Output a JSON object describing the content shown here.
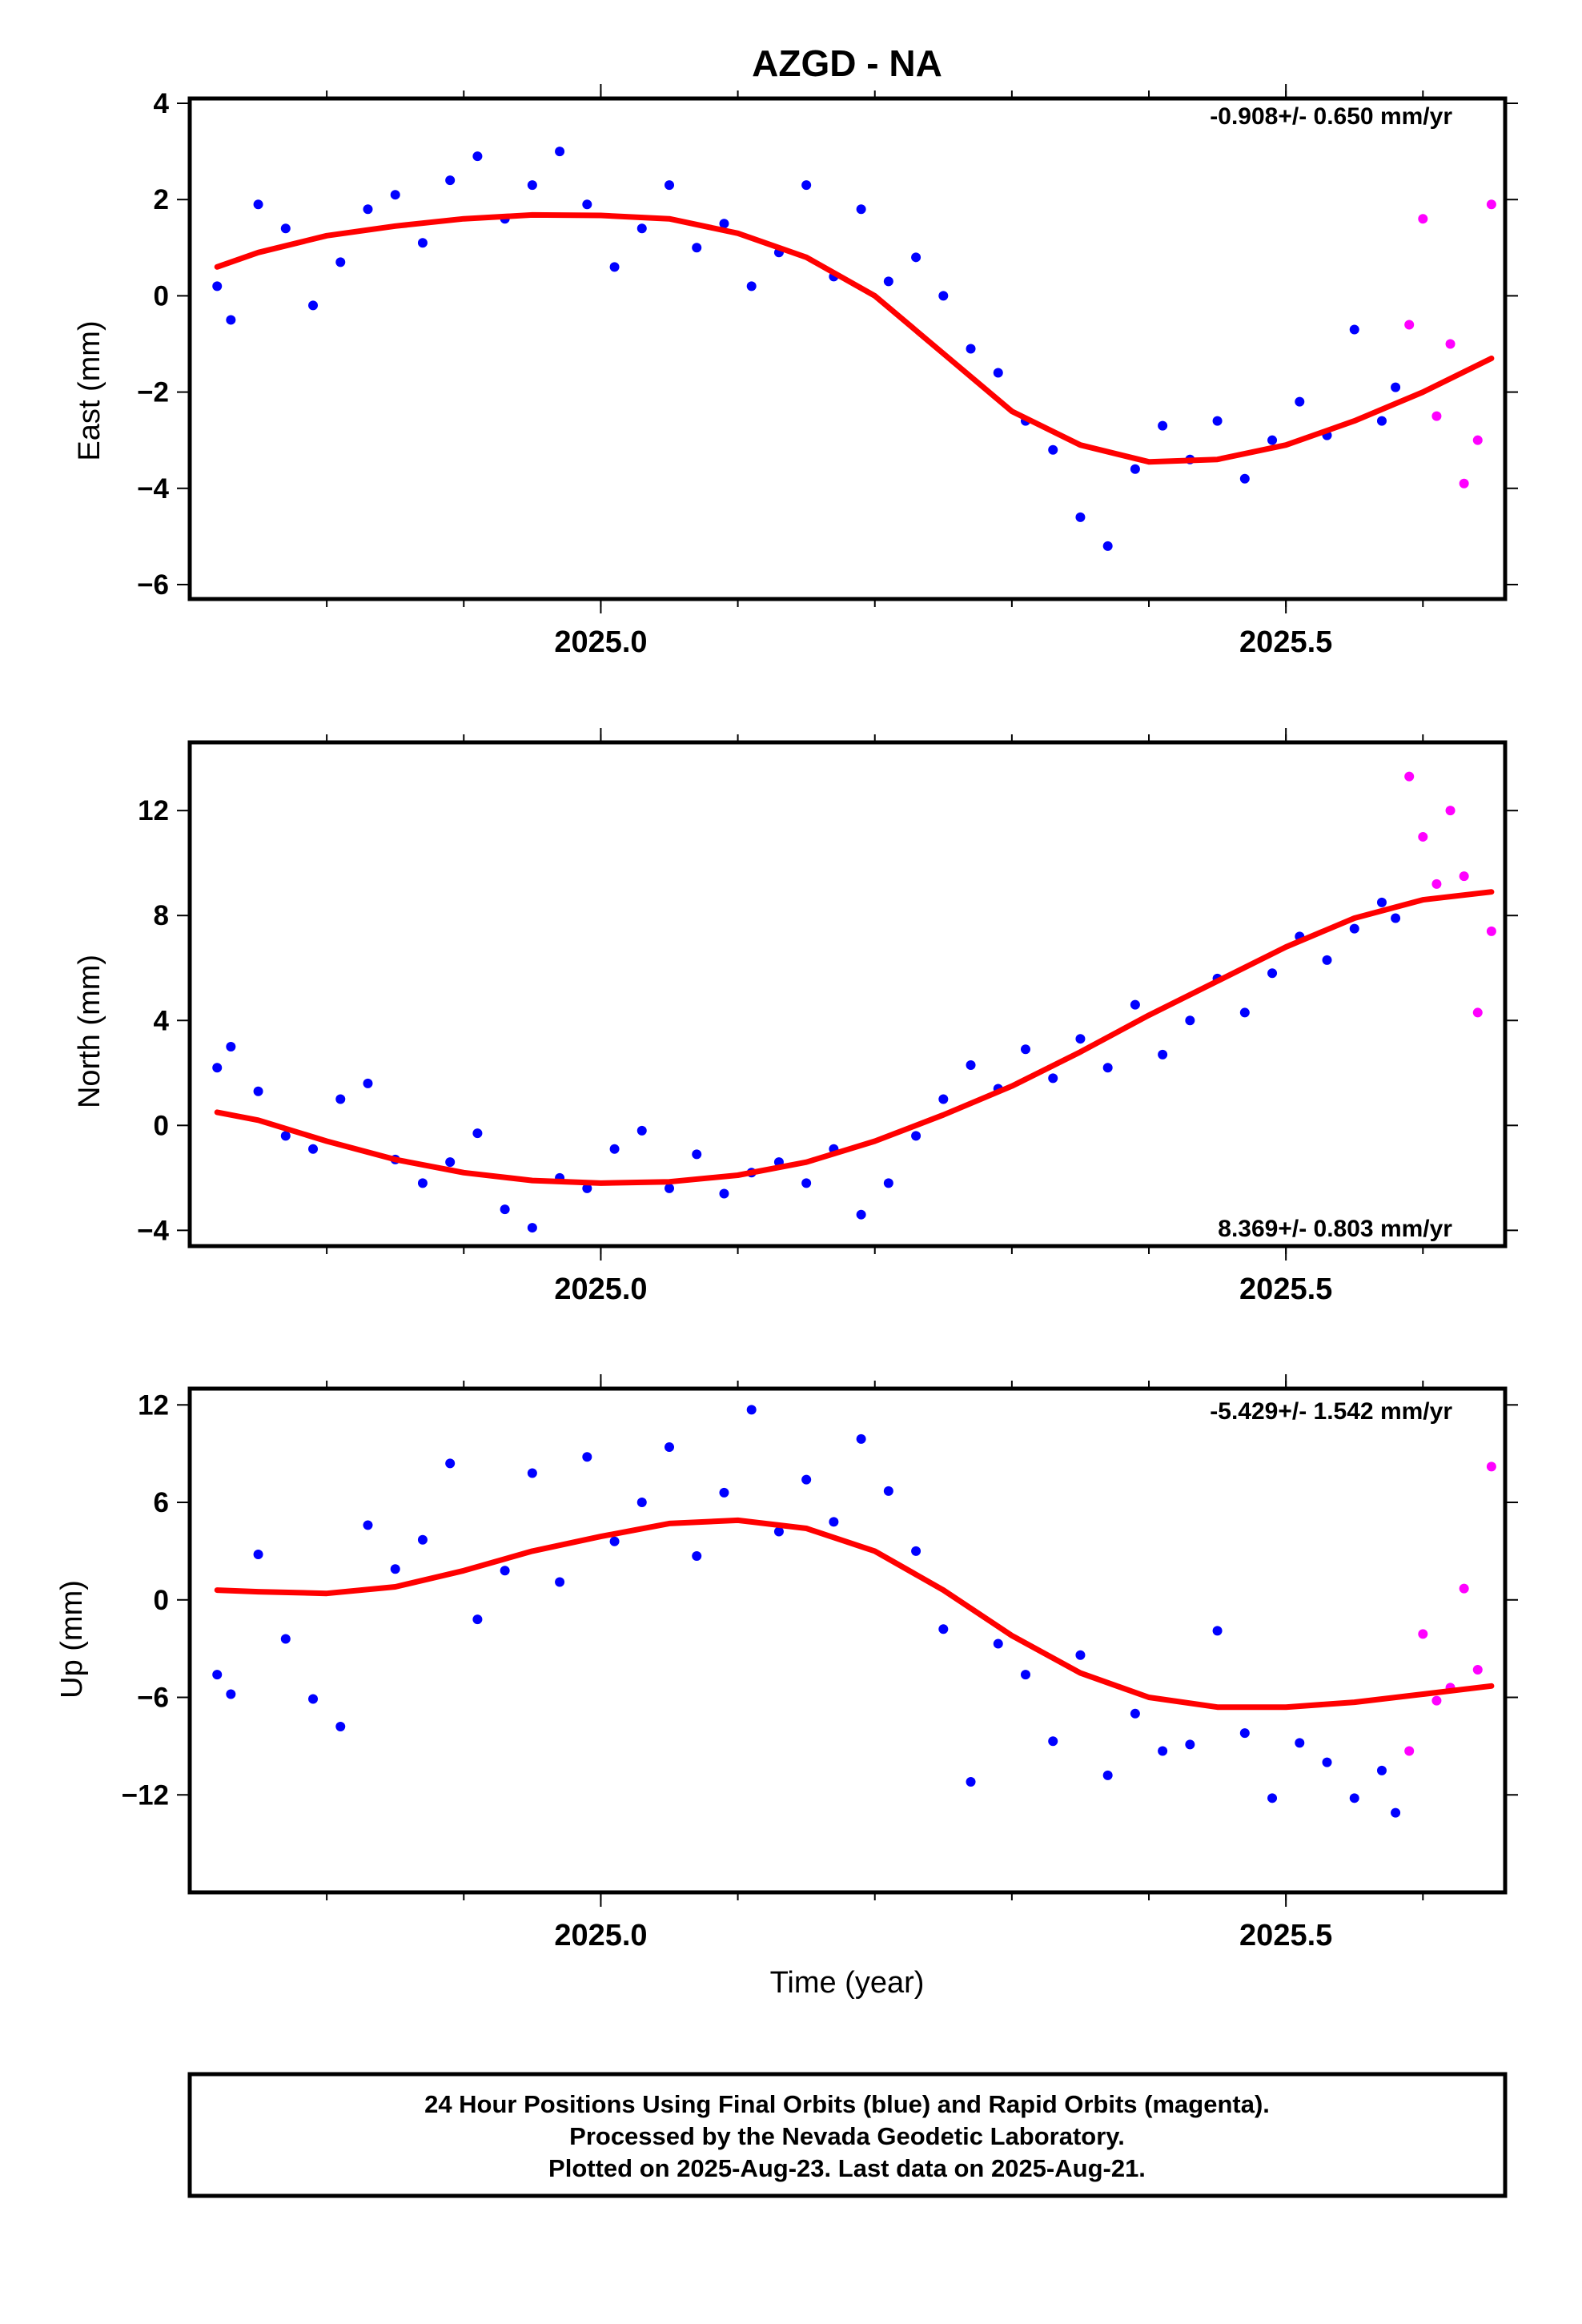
{
  "title": "AZGD - NA",
  "colors": {
    "final": "#0000ff",
    "rapid": "#ff00ff",
    "fit": "#ff0000",
    "frame": "#000000"
  },
  "xlabel": "Time (year)",
  "footer": {
    "line1": "24 Hour Positions Using Final Orbits (blue) and Rapid Orbits (magenta).",
    "line2": "Processed by the Nevada Geodetic Laboratory.",
    "line3": "Plotted on 2025-Aug-23. Last data on 2025-Aug-21."
  },
  "chart_data": [
    {
      "type": "scatter",
      "ylabel": "East (mm)",
      "rate_text": "-0.908+/- 0.650 mm/yr",
      "xlim": [
        2024.7,
        2025.66
      ],
      "ylim": [
        -6.3,
        4.1
      ],
      "yticks": [
        -6,
        -4,
        -2,
        0,
        2,
        4
      ],
      "xticks": [
        2025.0,
        2025.5
      ],
      "xtick_labels": [
        "2025.0",
        "2025.5"
      ],
      "grid": false,
      "fit": {
        "x": [
          2024.72,
          2024.75,
          2024.8,
          2024.85,
          2024.9,
          2024.95,
          2025.0,
          2025.05,
          2025.1,
          2025.15,
          2025.2,
          2025.25,
          2025.3,
          2025.35,
          2025.4,
          2025.45,
          2025.5,
          2025.55,
          2025.6,
          2025.65
        ],
        "y": [
          0.6,
          0.9,
          1.25,
          1.45,
          1.6,
          1.68,
          1.67,
          1.6,
          1.3,
          0.8,
          0.0,
          -1.2,
          -2.4,
          -3.1,
          -3.45,
          -3.4,
          -3.1,
          -2.6,
          -2.0,
          -1.3
        ]
      },
      "final": {
        "x": [
          2024.72,
          2024.73,
          2024.75,
          2024.77,
          2024.79,
          2024.81,
          2024.83,
          2024.85,
          2024.87,
          2024.89,
          2024.91,
          2024.93,
          2024.95,
          2024.97,
          2024.99,
          2025.01,
          2025.03,
          2025.05,
          2025.07,
          2025.09,
          2025.11,
          2025.13,
          2025.15,
          2025.17,
          2025.19,
          2025.21,
          2025.23,
          2025.25,
          2025.27,
          2025.29,
          2025.31,
          2025.33,
          2025.35,
          2025.37,
          2025.39,
          2025.41,
          2025.43,
          2025.45,
          2025.47,
          2025.49,
          2025.51,
          2025.53,
          2025.55,
          2025.57,
          2025.58
        ],
        "y": [
          0.2,
          -0.5,
          1.9,
          1.4,
          -0.2,
          0.7,
          1.8,
          2.1,
          1.1,
          2.4,
          2.9,
          1.6,
          2.3,
          3.0,
          1.9,
          0.6,
          1.4,
          2.3,
          1.0,
          1.5,
          0.2,
          0.9,
          2.3,
          0.4,
          1.8,
          0.3,
          0.8,
          0.0,
          -1.1,
          -1.6,
          -2.6,
          -3.2,
          -4.6,
          -5.2,
          -3.6,
          -2.7,
          -3.4,
          -2.6,
          -3.8,
          -3.0,
          -2.2,
          -2.9,
          -0.7,
          -2.6,
          -1.9
        ]
      },
      "rapid": {
        "x": [
          2025.59,
          2025.6,
          2025.61,
          2025.62,
          2025.63,
          2025.64,
          2025.65
        ],
        "y": [
          -0.6,
          1.6,
          -2.5,
          -1.0,
          -3.9,
          -3.0,
          1.9
        ]
      }
    },
    {
      "type": "scatter",
      "ylabel": "North (mm)",
      "rate_text": "8.369+/- 0.803 mm/yr",
      "xlim": [
        2024.7,
        2025.66
      ],
      "ylim": [
        -4.6,
        14.6
      ],
      "yticks": [
        -4,
        0,
        4,
        8,
        12
      ],
      "xticks": [
        2025.0,
        2025.5
      ],
      "xtick_labels": [
        "2025.0",
        "2025.5"
      ],
      "grid": false,
      "fit": {
        "x": [
          2024.72,
          2024.75,
          2024.8,
          2024.85,
          2024.9,
          2024.95,
          2025.0,
          2025.05,
          2025.1,
          2025.15,
          2025.2,
          2025.25,
          2025.3,
          2025.35,
          2025.4,
          2025.45,
          2025.5,
          2025.55,
          2025.6,
          2025.65
        ],
        "y": [
          0.5,
          0.2,
          -0.6,
          -1.3,
          -1.8,
          -2.1,
          -2.2,
          -2.15,
          -1.9,
          -1.4,
          -0.6,
          0.4,
          1.5,
          2.8,
          4.2,
          5.5,
          6.8,
          7.9,
          8.6,
          8.9
        ]
      },
      "final": {
        "x": [
          2024.72,
          2024.73,
          2024.75,
          2024.77,
          2024.79,
          2024.81,
          2024.83,
          2024.85,
          2024.87,
          2024.89,
          2024.91,
          2024.93,
          2024.95,
          2024.97,
          2024.99,
          2025.01,
          2025.03,
          2025.05,
          2025.07,
          2025.09,
          2025.11,
          2025.13,
          2025.15,
          2025.17,
          2025.19,
          2025.21,
          2025.23,
          2025.25,
          2025.27,
          2025.29,
          2025.31,
          2025.33,
          2025.35,
          2025.37,
          2025.39,
          2025.41,
          2025.43,
          2025.45,
          2025.47,
          2025.49,
          2025.51,
          2025.53,
          2025.55,
          2025.57,
          2025.58
        ],
        "y": [
          2.2,
          3.0,
          1.3,
          -0.4,
          -0.9,
          1.0,
          1.6,
          -1.3,
          -2.2,
          -1.4,
          -0.3,
          -3.2,
          -3.9,
          -2.0,
          -2.4,
          -0.9,
          -0.2,
          -2.4,
          -1.1,
          -2.6,
          -1.8,
          -1.4,
          -2.2,
          -0.9,
          -3.4,
          -2.2,
          -0.4,
          1.0,
          2.3,
          1.4,
          2.9,
          1.8,
          3.3,
          2.2,
          4.6,
          2.7,
          4.0,
          5.6,
          4.3,
          5.8,
          7.2,
          6.3,
          7.5,
          8.5,
          7.9
        ]
      },
      "rapid": {
        "x": [
          2025.59,
          2025.6,
          2025.61,
          2025.62,
          2025.63,
          2025.64,
          2025.65
        ],
        "y": [
          13.3,
          11.0,
          9.2,
          12.0,
          9.5,
          4.3,
          7.4
        ]
      }
    },
    {
      "type": "scatter",
      "ylabel": "Up (mm)",
      "rate_text": "-5.429+/- 1.542 mm/yr",
      "xlim": [
        2024.7,
        2025.66
      ],
      "ylim": [
        -18,
        13
      ],
      "yticks": [
        -12,
        -6,
        0,
        6,
        12
      ],
      "xticks": [
        2025.0,
        2025.5
      ],
      "xtick_labels": [
        "2025.0",
        "2025.5"
      ],
      "grid": false,
      "fit": {
        "x": [
          2024.72,
          2024.75,
          2024.8,
          2024.85,
          2024.9,
          2024.95,
          2025.0,
          2025.05,
          2025.1,
          2025.15,
          2025.2,
          2025.25,
          2025.3,
          2025.35,
          2025.4,
          2025.45,
          2025.5,
          2025.55,
          2025.6,
          2025.65
        ],
        "y": [
          0.6,
          0.5,
          0.4,
          0.8,
          1.8,
          3.0,
          3.9,
          4.7,
          4.9,
          4.4,
          3.0,
          0.6,
          -2.2,
          -4.5,
          -6.0,
          -6.6,
          -6.6,
          -6.3,
          -5.8,
          -5.3
        ]
      },
      "final": {
        "x": [
          2024.72,
          2024.73,
          2024.75,
          2024.77,
          2024.79,
          2024.81,
          2024.83,
          2024.85,
          2024.87,
          2024.89,
          2024.91,
          2024.93,
          2024.95,
          2024.97,
          2024.99,
          2025.01,
          2025.03,
          2025.05,
          2025.07,
          2025.09,
          2025.11,
          2025.13,
          2025.15,
          2025.17,
          2025.19,
          2025.21,
          2025.23,
          2025.25,
          2025.27,
          2025.29,
          2025.31,
          2025.33,
          2025.35,
          2025.37,
          2025.39,
          2025.41,
          2025.43,
          2025.45,
          2025.47,
          2025.49,
          2025.51,
          2025.53,
          2025.55,
          2025.57,
          2025.58
        ],
        "y": [
          -4.6,
          -5.8,
          2.8,
          -2.4,
          -6.1,
          -7.8,
          4.6,
          1.9,
          3.7,
          8.4,
          -1.2,
          1.8,
          7.8,
          1.1,
          8.8,
          3.6,
          6.0,
          9.4,
          2.7,
          6.6,
          11.7,
          4.2,
          7.4,
          4.8,
          9.9,
          6.7,
          3.0,
          -1.8,
          -11.2,
          -2.7,
          -4.6,
          -8.7,
          -3.4,
          -10.8,
          -7.0,
          -9.3,
          -8.9,
          -1.9,
          -8.2,
          -12.2,
          -8.8,
          -10.0,
          -12.2,
          -10.5,
          -13.1
        ]
      },
      "rapid": {
        "x": [
          2025.59,
          2025.6,
          2025.61,
          2025.62,
          2025.63,
          2025.64,
          2025.65
        ],
        "y": [
          -9.3,
          -2.1,
          -6.2,
          -5.4,
          0.7,
          -4.3,
          8.2
        ]
      }
    }
  ]
}
